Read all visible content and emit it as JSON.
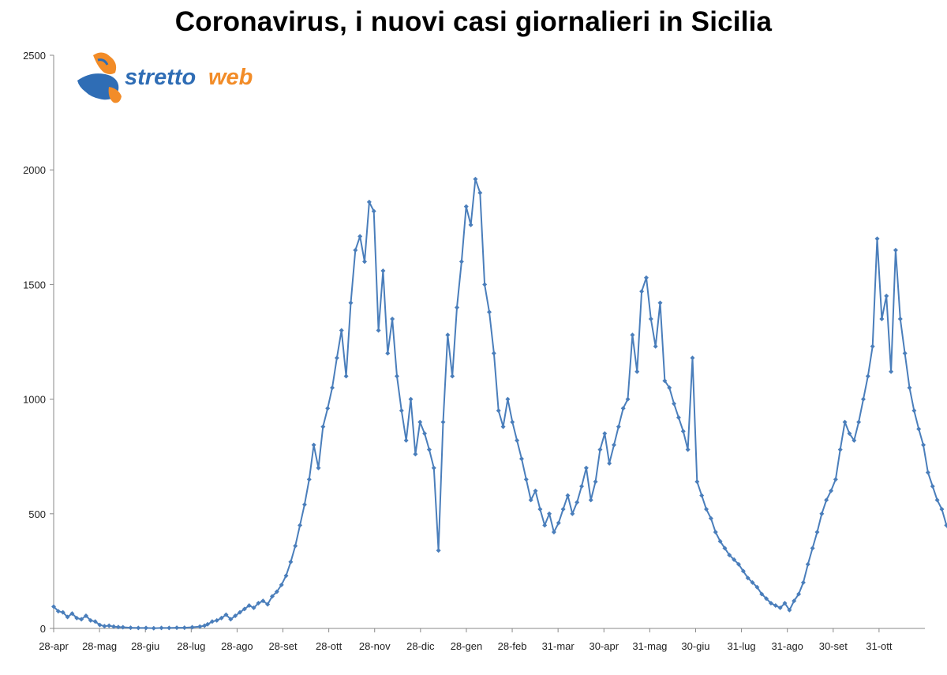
{
  "chart_data": {
    "type": "line",
    "title": "Coronavirus, i nuovi casi giornalieri in Sicilia",
    "xlabel": "",
    "ylabel": "",
    "ylim": [
      0,
      2500
    ],
    "yticks": [
      0,
      500,
      1000,
      1500,
      2000,
      2500
    ],
    "xtick_labels": [
      "28-apr",
      "28-mag",
      "28-giu",
      "28-lug",
      "28-ago",
      "28-set",
      "28-ott",
      "28-nov",
      "28-dic",
      "28-gen",
      "28-feb",
      "31-mar",
      "30-apr",
      "31-mag",
      "30-giu",
      "31-lug",
      "31-ago",
      "30-set",
      "31-ott"
    ],
    "x_start": "2020-04-28",
    "x_end": "2021-11-15",
    "grid": false,
    "legend": "none",
    "series_color": "#4a7ebb",
    "series": [
      {
        "values": [
          [
            0,
            95
          ],
          [
            3,
            75
          ],
          [
            6,
            70
          ],
          [
            9,
            50
          ],
          [
            12,
            65
          ],
          [
            15,
            45
          ],
          [
            18,
            40
          ],
          [
            21,
            55
          ],
          [
            24,
            35
          ],
          [
            27,
            30
          ],
          [
            30,
            15
          ],
          [
            33,
            10
          ],
          [
            36,
            12
          ],
          [
            39,
            8
          ],
          [
            42,
            6
          ],
          [
            45,
            5
          ],
          [
            50,
            3
          ],
          [
            55,
            2
          ],
          [
            60,
            2
          ],
          [
            65,
            1
          ],
          [
            70,
            2
          ],
          [
            75,
            2
          ],
          [
            80,
            3
          ],
          [
            85,
            3
          ],
          [
            90,
            5
          ],
          [
            95,
            8
          ],
          [
            98,
            12
          ],
          [
            100,
            18
          ],
          [
            103,
            30
          ],
          [
            106,
            35
          ],
          [
            109,
            45
          ],
          [
            112,
            60
          ],
          [
            115,
            40
          ],
          [
            118,
            55
          ],
          [
            121,
            70
          ],
          [
            124,
            85
          ],
          [
            127,
            100
          ],
          [
            130,
            90
          ],
          [
            133,
            110
          ],
          [
            136,
            120
          ],
          [
            139,
            105
          ],
          [
            142,
            140
          ],
          [
            145,
            160
          ],
          [
            148,
            190
          ],
          [
            151,
            230
          ],
          [
            154,
            290
          ],
          [
            157,
            360
          ],
          [
            160,
            450
          ],
          [
            163,
            540
          ],
          [
            166,
            650
          ],
          [
            169,
            800
          ],
          [
            172,
            700
          ],
          [
            175,
            880
          ],
          [
            178,
            960
          ],
          [
            181,
            1050
          ],
          [
            184,
            1180
          ],
          [
            187,
            1300
          ],
          [
            190,
            1100
          ],
          [
            193,
            1420
          ],
          [
            196,
            1650
          ],
          [
            199,
            1710
          ],
          [
            202,
            1600
          ],
          [
            205,
            1860
          ],
          [
            208,
            1820
          ],
          [
            211,
            1300
          ],
          [
            214,
            1560
          ],
          [
            217,
            1200
          ],
          [
            220,
            1350
          ],
          [
            223,
            1100
          ],
          [
            226,
            950
          ],
          [
            229,
            820
          ],
          [
            232,
            1000
          ],
          [
            235,
            760
          ],
          [
            238,
            900
          ],
          [
            241,
            850
          ],
          [
            244,
            780
          ],
          [
            247,
            700
          ],
          [
            250,
            340
          ],
          [
            253,
            900
          ],
          [
            256,
            1280
          ],
          [
            259,
            1100
          ],
          [
            262,
            1400
          ],
          [
            265,
            1600
          ],
          [
            268,
            1840
          ],
          [
            271,
            1760
          ],
          [
            274,
            1960
          ],
          [
            277,
            1900
          ],
          [
            280,
            1500
          ],
          [
            283,
            1380
          ],
          [
            286,
            1200
          ],
          [
            289,
            950
          ],
          [
            292,
            880
          ],
          [
            295,
            1000
          ],
          [
            298,
            900
          ],
          [
            301,
            820
          ],
          [
            304,
            740
          ],
          [
            307,
            650
          ],
          [
            310,
            560
          ],
          [
            313,
            600
          ],
          [
            316,
            520
          ],
          [
            319,
            450
          ],
          [
            322,
            500
          ],
          [
            325,
            420
          ],
          [
            328,
            460
          ],
          [
            331,
            520
          ],
          [
            334,
            580
          ],
          [
            337,
            500
          ],
          [
            340,
            550
          ],
          [
            343,
            620
          ],
          [
            346,
            700
          ],
          [
            349,
            560
          ],
          [
            352,
            640
          ],
          [
            355,
            780
          ],
          [
            358,
            850
          ],
          [
            361,
            720
          ],
          [
            364,
            800
          ],
          [
            367,
            880
          ],
          [
            370,
            960
          ],
          [
            373,
            1000
          ],
          [
            376,
            1280
          ],
          [
            379,
            1120
          ],
          [
            382,
            1470
          ],
          [
            385,
            1530
          ],
          [
            388,
            1350
          ],
          [
            391,
            1230
          ],
          [
            394,
            1420
          ],
          [
            397,
            1080
          ],
          [
            400,
            1050
          ],
          [
            403,
            980
          ],
          [
            406,
            920
          ],
          [
            409,
            860
          ],
          [
            412,
            780
          ],
          [
            415,
            1180
          ],
          [
            418,
            640
          ],
          [
            421,
            580
          ],
          [
            424,
            520
          ],
          [
            427,
            480
          ],
          [
            430,
            420
          ],
          [
            433,
            380
          ],
          [
            436,
            350
          ],
          [
            439,
            320
          ],
          [
            442,
            300
          ],
          [
            445,
            280
          ],
          [
            448,
            250
          ],
          [
            451,
            220
          ],
          [
            454,
            200
          ],
          [
            457,
            180
          ],
          [
            460,
            150
          ],
          [
            463,
            130
          ],
          [
            466,
            110
          ],
          [
            469,
            100
          ],
          [
            472,
            90
          ],
          [
            475,
            110
          ],
          [
            478,
            80
          ],
          [
            481,
            120
          ],
          [
            484,
            150
          ],
          [
            487,
            200
          ],
          [
            490,
            280
          ],
          [
            493,
            350
          ],
          [
            496,
            420
          ],
          [
            499,
            500
          ],
          [
            502,
            560
          ],
          [
            505,
            600
          ],
          [
            508,
            650
          ],
          [
            511,
            780
          ],
          [
            514,
            900
          ],
          [
            517,
            850
          ],
          [
            520,
            820
          ],
          [
            523,
            900
          ],
          [
            526,
            1000
          ],
          [
            529,
            1100
          ],
          [
            532,
            1230
          ],
          [
            535,
            1700
          ],
          [
            538,
            1350
          ],
          [
            541,
            1450
          ],
          [
            544,
            1120
          ],
          [
            547,
            1650
          ],
          [
            550,
            1350
          ],
          [
            553,
            1200
          ],
          [
            556,
            1050
          ],
          [
            559,
            950
          ],
          [
            562,
            870
          ],
          [
            565,
            800
          ],
          [
            568,
            680
          ],
          [
            571,
            620
          ],
          [
            574,
            560
          ],
          [
            577,
            520
          ],
          [
            580,
            450
          ],
          [
            583,
            400
          ],
          [
            586,
            350
          ],
          [
            589,
            300
          ],
          [
            592,
            260
          ],
          [
            595,
            240
          ],
          [
            598,
            260
          ],
          [
            601,
            280
          ],
          [
            604,
            240
          ],
          [
            607,
            220
          ],
          [
            610,
            250
          ],
          [
            613,
            300
          ],
          [
            616,
            360
          ],
          [
            619,
            330
          ],
          [
            622,
            420
          ],
          [
            625,
            470
          ],
          [
            628,
            480
          ],
          [
            631,
            460
          ],
          [
            635,
            300
          ]
        ]
      }
    ]
  },
  "logo": {
    "text_part1": "stretto",
    "text_part2": "web"
  }
}
